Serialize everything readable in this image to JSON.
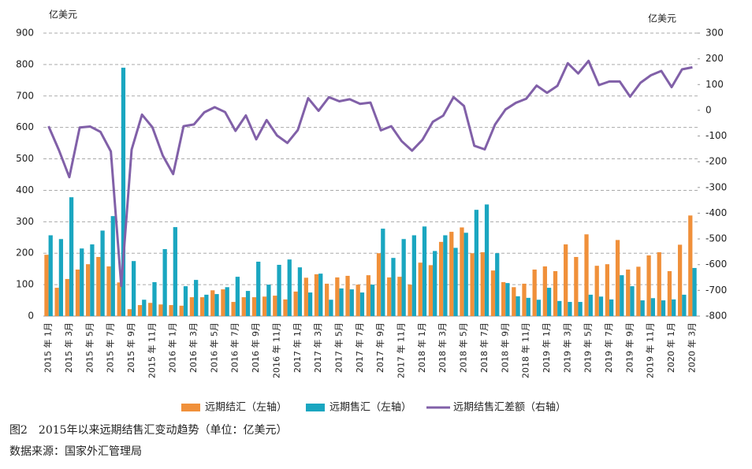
{
  "chart_data": {
    "type": "bar_line",
    "y_unit_label": "亿美元",
    "y2_unit_label": "亿美元",
    "categories": [
      "2015 年 1月",
      null,
      "2015 年 3月",
      null,
      "2015 年 5月",
      null,
      "2015 年 7月",
      null,
      "2015 年 9月",
      null,
      "2015 年 11月",
      null,
      "2016 年 1月",
      null,
      "2016 年 3月",
      null,
      "2016 年 5月",
      null,
      "2016 年 7月",
      null,
      "2016 年 9月",
      null,
      "2016 年 11月",
      null,
      "2017 年 1月",
      null,
      "2017 年 3月",
      null,
      "2017 年 5月",
      null,
      "2017 年 7月",
      null,
      "2017 年 9月",
      null,
      "2017 年 11月",
      null,
      "2018 年 1月",
      null,
      "2018 年 3月",
      null,
      "2018 年 5月",
      null,
      "2018 年 7月",
      null,
      "2018 年 9月",
      null,
      "2018 年 11月",
      null,
      "2019 年 1月",
      null,
      "2019 年 3月",
      null,
      "2019 年 5月",
      null,
      "2019 年 7月",
      null,
      "2019 年 9月",
      null,
      "2019 年 11月",
      null,
      "2020 年 1月",
      null,
      "2020 年 3月"
    ],
    "series": [
      {
        "name": "远期结汇（左轴）",
        "color": "#f0903a",
        "type": "bar",
        "values": [
          195,
          90,
          118,
          148,
          165,
          188,
          158,
          107,
          22,
          35,
          42,
          37,
          35,
          33,
          60,
          60,
          82,
          85,
          45,
          60,
          60,
          62,
          65,
          53,
          78,
          122,
          133,
          103,
          123,
          128,
          100,
          130,
          200,
          123,
          125,
          100,
          170,
          162,
          236,
          268,
          282,
          200,
          203,
          145,
          108,
          92,
          103,
          148,
          158,
          143,
          228,
          188,
          260,
          160,
          165,
          242,
          148,
          157,
          193,
          203,
          143,
          227,
          320
        ]
      },
      {
        "name": "远期售汇（左轴）",
        "color": "#1aa6c0",
        "type": "bar",
        "values": [
          257,
          245,
          378,
          215,
          228,
          272,
          318,
          790,
          175,
          52,
          108,
          213,
          283,
          95,
          115,
          68,
          70,
          92,
          125,
          80,
          173,
          100,
          163,
          180,
          155,
          75,
          135,
          52,
          88,
          85,
          75,
          100,
          278,
          185,
          245,
          257,
          285,
          207,
          257,
          217,
          265,
          338,
          355,
          200,
          105,
          63,
          58,
          52,
          90,
          48,
          45,
          45,
          68,
          62,
          53,
          130,
          95,
          50,
          57,
          50,
          53,
          68,
          153
        ]
      },
      {
        "name": "远期结售汇差额（右轴）",
        "color": "#8160a8",
        "type": "line",
        "axis": "y2",
        "values": [
          -62,
          -155,
          -260,
          -67,
          -63,
          -84,
          -160,
          -683,
          -153,
          -17,
          -66,
          -176,
          -248,
          -62,
          -55,
          -8,
          12,
          -7,
          -80,
          -20,
          -113,
          -38,
          -98,
          -127,
          -77,
          47,
          -2,
          51,
          35,
          43,
          25,
          30,
          -78,
          -62,
          -120,
          -157,
          -115,
          -45,
          -21,
          51,
          17,
          -138,
          -152,
          -55,
          3,
          29,
          45,
          96,
          68,
          95,
          183,
          143,
          192,
          98,
          112,
          112,
          53,
          107,
          136,
          153,
          90,
          159,
          167
        ]
      }
    ],
    "ylim": [
      0,
      900
    ],
    "yticks": [
      0,
      100,
      200,
      300,
      400,
      500,
      600,
      700,
      800,
      900
    ],
    "y2lim": [
      -800,
      300
    ],
    "y2ticks": [
      -800,
      -700,
      -600,
      -500,
      -400,
      -300,
      -200,
      -100,
      0,
      100,
      200,
      300
    ],
    "grid": true,
    "caption": "图2　2015年以来远期结售汇变动趋势（单位：亿美元）",
    "source": "数据来源：国家外汇管理局"
  }
}
